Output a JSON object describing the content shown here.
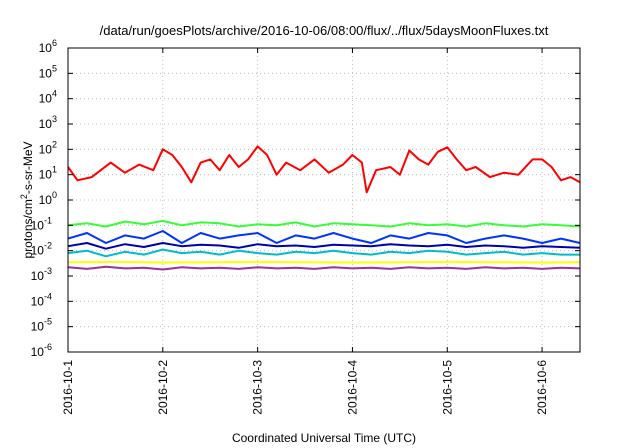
{
  "chart_data": {
    "type": "line",
    "title": "/data/run/goesPlots/archive/2016-10-06/08:00/flux/../flux/5daysMoonFluxes.txt",
    "xlabel": "Coordinated Universal Time (UTC)",
    "ylabel_parts": [
      "protons/cm",
      "2",
      "-s-sr-MeV"
    ],
    "y_scale": "log",
    "ylim": [
      1e-06,
      1000000.0
    ],
    "y_ticks": [
      {
        "base": "10",
        "exp": "-6",
        "value": 1e-06
      },
      {
        "base": "10",
        "exp": "-5",
        "value": 1e-05
      },
      {
        "base": "10",
        "exp": "-4",
        "value": 0.0001
      },
      {
        "base": "10",
        "exp": "-3",
        "value": 0.001
      },
      {
        "base": "10",
        "exp": "-2",
        "value": 0.01
      },
      {
        "base": "10",
        "exp": "-1",
        "value": 0.1
      },
      {
        "base": "10",
        "exp": "0",
        "value": 1
      },
      {
        "base": "10",
        "exp": "1",
        "value": 10
      },
      {
        "base": "10",
        "exp": "2",
        "value": 100
      },
      {
        "base": "10",
        "exp": "3",
        "value": 1000
      },
      {
        "base": "10",
        "exp": "4",
        "value": 10000
      },
      {
        "base": "10",
        "exp": "5",
        "value": 100000
      },
      {
        "base": "10",
        "exp": "6",
        "value": 1000000
      }
    ],
    "x_unit": "days",
    "xlim": [
      0,
      5.4
    ],
    "x_ticks": [
      {
        "label": "2016-10-1",
        "value": 0
      },
      {
        "label": "2016-10-2",
        "value": 1
      },
      {
        "label": "2016-10-3",
        "value": 2
      },
      {
        "label": "2016-10-4",
        "value": 3
      },
      {
        "label": "2016-10-5",
        "value": 4
      },
      {
        "label": "2016-10-6",
        "value": 5
      }
    ],
    "grid": true,
    "legend": "none",
    "series": [
      {
        "color": "#ff0000",
        "x": [
          0.0,
          0.1,
          0.25,
          0.45,
          0.6,
          0.75,
          0.9,
          1.0,
          1.1,
          1.2,
          1.3,
          1.4,
          1.5,
          1.6,
          1.7,
          1.8,
          1.9,
          2.0,
          2.1,
          2.2,
          2.3,
          2.45,
          2.6,
          2.75,
          2.9,
          3.0,
          3.1,
          3.15,
          3.25,
          3.4,
          3.5,
          3.6,
          3.7,
          3.8,
          3.9,
          4.0,
          4.1,
          4.2,
          4.3,
          4.45,
          4.6,
          4.75,
          4.9,
          5.0,
          5.1,
          5.2,
          5.3,
          5.4
        ],
        "values": [
          20,
          6,
          8,
          30,
          12,
          25,
          15,
          100,
          60,
          20,
          5,
          30,
          40,
          15,
          60,
          20,
          40,
          130,
          60,
          10,
          30,
          15,
          40,
          12,
          25,
          60,
          30,
          2,
          15,
          20,
          10,
          90,
          40,
          25,
          80,
          120,
          40,
          15,
          20,
          8,
          12,
          10,
          40,
          40,
          20,
          6,
          8,
          5
        ]
      },
      {
        "color": "#33ff33",
        "x": [
          0.0,
          0.2,
          0.4,
          0.6,
          0.8,
          1.0,
          1.2,
          1.4,
          1.6,
          1.8,
          2.0,
          2.2,
          2.4,
          2.6,
          2.8,
          3.0,
          3.2,
          3.4,
          3.6,
          3.8,
          4.0,
          4.2,
          4.4,
          4.6,
          4.8,
          5.0,
          5.2,
          5.4
        ],
        "values": [
          0.1,
          0.12,
          0.09,
          0.14,
          0.11,
          0.15,
          0.1,
          0.13,
          0.12,
          0.09,
          0.11,
          0.1,
          0.13,
          0.09,
          0.12,
          0.11,
          0.1,
          0.09,
          0.12,
          0.1,
          0.11,
          0.09,
          0.12,
          0.1,
          0.09,
          0.11,
          0.1,
          0.09
        ]
      },
      {
        "color": "#0033ff",
        "x": [
          0.0,
          0.2,
          0.4,
          0.6,
          0.8,
          1.0,
          1.2,
          1.4,
          1.6,
          1.8,
          2.0,
          2.2,
          2.4,
          2.6,
          2.8,
          3.0,
          3.2,
          3.4,
          3.6,
          3.8,
          4.0,
          4.2,
          4.4,
          4.6,
          4.8,
          5.0,
          5.2,
          5.4
        ],
        "values": [
          0.03,
          0.05,
          0.02,
          0.04,
          0.03,
          0.06,
          0.02,
          0.05,
          0.03,
          0.04,
          0.05,
          0.02,
          0.04,
          0.03,
          0.05,
          0.03,
          0.02,
          0.04,
          0.03,
          0.05,
          0.04,
          0.02,
          0.03,
          0.04,
          0.03,
          0.02,
          0.03,
          0.02
        ]
      },
      {
        "color": "#0000aa",
        "x": [
          0.0,
          0.2,
          0.4,
          0.6,
          0.8,
          1.0,
          1.2,
          1.4,
          1.6,
          1.8,
          2.0,
          2.2,
          2.4,
          2.6,
          2.8,
          3.0,
          3.2,
          3.4,
          3.6,
          3.8,
          4.0,
          4.2,
          4.4,
          4.6,
          4.8,
          5.0,
          5.2,
          5.4
        ],
        "values": [
          0.015,
          0.02,
          0.012,
          0.018,
          0.014,
          0.02,
          0.015,
          0.017,
          0.016,
          0.013,
          0.018,
          0.015,
          0.016,
          0.014,
          0.017,
          0.016,
          0.015,
          0.018,
          0.016,
          0.015,
          0.017,
          0.014,
          0.016,
          0.015,
          0.013,
          0.015,
          0.014,
          0.013
        ]
      },
      {
        "color": "#00bbcc",
        "x": [
          0.0,
          0.2,
          0.4,
          0.6,
          0.8,
          1.0,
          1.2,
          1.4,
          1.6,
          1.8,
          2.0,
          2.2,
          2.4,
          2.6,
          2.8,
          3.0,
          3.2,
          3.4,
          3.6,
          3.8,
          4.0,
          4.2,
          4.4,
          4.6,
          4.8,
          5.0,
          5.2,
          5.4
        ],
        "values": [
          0.008,
          0.01,
          0.006,
          0.009,
          0.007,
          0.011,
          0.008,
          0.009,
          0.007,
          0.01,
          0.008,
          0.007,
          0.009,
          0.008,
          0.01,
          0.008,
          0.007,
          0.009,
          0.008,
          0.01,
          0.009,
          0.007,
          0.008,
          0.009,
          0.007,
          0.008,
          0.007,
          0.007
        ]
      },
      {
        "color": "#ffff00",
        "x": [
          0.0,
          0.5,
          1.0,
          1.5,
          2.0,
          2.5,
          3.0,
          3.5,
          4.0,
          4.5,
          5.0,
          5.4
        ],
        "values": [
          0.0035,
          0.0036,
          0.0034,
          0.0035,
          0.0036,
          0.0035,
          0.0034,
          0.0035,
          0.0036,
          0.0035,
          0.0034,
          0.0035
        ]
      },
      {
        "color": "#993399",
        "x": [
          0.0,
          0.2,
          0.4,
          0.6,
          0.8,
          1.0,
          1.2,
          1.4,
          1.6,
          1.8,
          2.0,
          2.2,
          2.4,
          2.6,
          2.8,
          3.0,
          3.2,
          3.4,
          3.6,
          3.8,
          4.0,
          4.2,
          4.4,
          4.6,
          4.8,
          5.0,
          5.2,
          5.4
        ],
        "values": [
          0.0022,
          0.0019,
          0.0023,
          0.002,
          0.0021,
          0.0018,
          0.0022,
          0.002,
          0.0021,
          0.0019,
          0.0022,
          0.002,
          0.0021,
          0.0019,
          0.0022,
          0.002,
          0.0021,
          0.0019,
          0.0022,
          0.002,
          0.0021,
          0.0019,
          0.0022,
          0.002,
          0.0021,
          0.0019,
          0.0021,
          0.002
        ]
      }
    ]
  }
}
